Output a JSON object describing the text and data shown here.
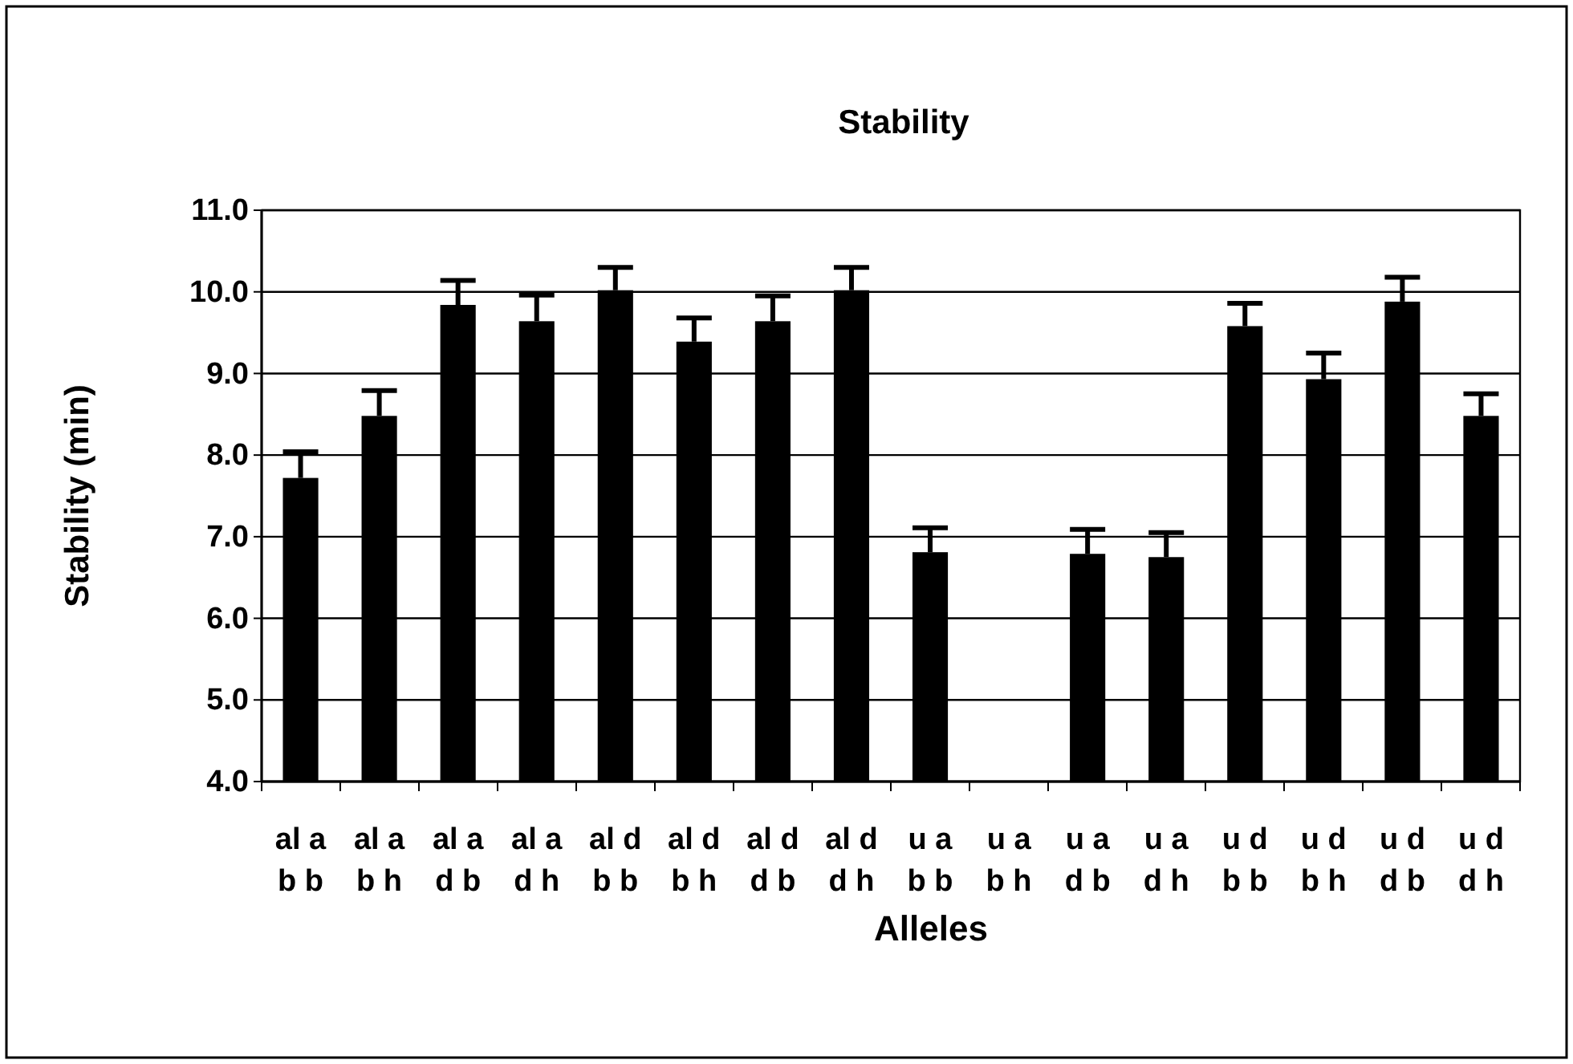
{
  "chart_data": {
    "type": "bar",
    "title": "Stability",
    "xlabel": "Alleles",
    "ylabel": "Stability (min)",
    "categories": [
      "al a\nb b",
      "al a\nb h",
      "al a\nd b",
      "al a\nd h",
      "al d\nb b",
      "al d\nb h",
      "al d\nd b",
      "al d\nd h",
      "u a\nb b",
      "u a\nb h",
      "u a\nd b",
      "u a\nd h",
      "u d\nb b",
      "u d\nb h",
      "u d\nd b",
      "u d\nd h"
    ],
    "values": [
      7.72,
      8.48,
      9.84,
      9.64,
      10.02,
      9.39,
      9.64,
      10.02,
      6.81,
      null,
      6.79,
      6.75,
      9.58,
      8.93,
      9.88,
      8.48
    ],
    "errors": [
      [
        7.72,
        8.04
      ],
      [
        8.48,
        8.79
      ],
      [
        9.84,
        10.14
      ],
      [
        9.64,
        9.96
      ],
      [
        10.02,
        10.3
      ],
      [
        9.39,
        9.68
      ],
      [
        9.64,
        9.95
      ],
      [
        10.02,
        10.3
      ],
      [
        6.81,
        7.11
      ],
      null,
      [
        6.79,
        7.09
      ],
      [
        6.75,
        7.05
      ],
      [
        9.58,
        9.86
      ],
      [
        8.93,
        9.25
      ],
      [
        9.88,
        10.18
      ],
      [
        8.48,
        8.75
      ]
    ],
    "color": "#000000",
    "ylim": [
      4,
      11
    ],
    "yticks": [
      {
        "value": 4,
        "label": "4.0"
      },
      {
        "value": 5,
        "label": "5.0"
      },
      {
        "value": 6,
        "label": "6.0"
      },
      {
        "value": 7,
        "label": "7.0"
      },
      {
        "value": 8,
        "label": "8.0"
      },
      {
        "value": 9,
        "label": "9.0"
      },
      {
        "value": 10,
        "label": "10.0"
      },
      {
        "value": 11,
        "label": "11.0"
      }
    ],
    "grid": "y"
  }
}
